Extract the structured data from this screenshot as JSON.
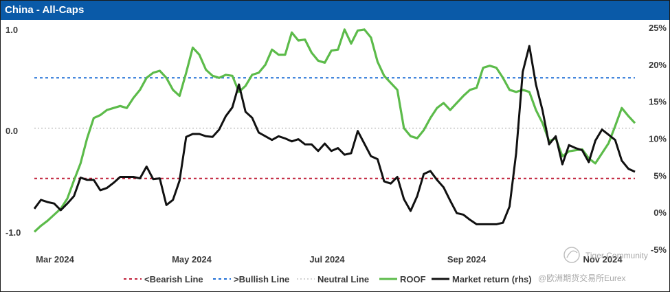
{
  "header": {
    "title": "China - All-Caps"
  },
  "chart_data": {
    "type": "line",
    "title": "China - All-Caps",
    "x_labels": [
      "Mar 2024",
      "May 2024",
      "Jul 2024",
      "Sep 2024",
      "Nov 2024"
    ],
    "y_left": {
      "range": [
        -1.0,
        1.0
      ],
      "ticks": [
        "1.0",
        "0.0",
        "-1.0"
      ],
      "tick_values": [
        1.0,
        0.0,
        -1.0
      ]
    },
    "y_right": {
      "range": [
        -5,
        25
      ],
      "ticks": [
        "25%",
        "20%",
        "15%",
        "10%",
        "5%",
        "0%",
        "-5%"
      ],
      "tick_values": [
        25,
        20,
        15,
        10,
        5,
        0,
        -5
      ]
    },
    "reference_lines": [
      {
        "name": "<Bearish Line",
        "value": -0.5,
        "color": "#c0203a",
        "style": "dashed"
      },
      {
        "name": ">Bullish Line",
        "value": 0.5,
        "color": "#1f6fd6",
        "style": "dashed"
      },
      {
        "name": "Neutral Line",
        "value": 0.0,
        "color": "#b8b8b8",
        "style": "dotted"
      }
    ],
    "series": [
      {
        "name": "ROOF",
        "axis": "left",
        "color": "#5cbb4a",
        "x": [
          0,
          3,
          6,
          9,
          12,
          15,
          18,
          21,
          24,
          27,
          30,
          33,
          36,
          39,
          42,
          45,
          48,
          51,
          54,
          57,
          60,
          63,
          66,
          69,
          72,
          75,
          78,
          81,
          84,
          87,
          90,
          93,
          96,
          99,
          102,
          105,
          108,
          111,
          114,
          117,
          120,
          123,
          126,
          129,
          132,
          135,
          138,
          141,
          144,
          147,
          150,
          153,
          156,
          159,
          162,
          165,
          168,
          171,
          174,
          177,
          180,
          183,
          186,
          189,
          192,
          195,
          198,
          201,
          204,
          207,
          210,
          213,
          216,
          219,
          222,
          225,
          228,
          231,
          234,
          237,
          240,
          243,
          246,
          249,
          252,
          255,
          258,
          261,
          264,
          267,
          270,
          273
        ],
        "values": [
          -1.03,
          -0.97,
          -0.92,
          -0.86,
          -0.8,
          -0.7,
          -0.52,
          -0.35,
          -0.1,
          0.1,
          0.13,
          0.18,
          0.2,
          0.22,
          0.2,
          0.3,
          0.38,
          0.5,
          0.55,
          0.57,
          0.5,
          0.38,
          0.32,
          0.55,
          0.8,
          0.73,
          0.58,
          0.52,
          0.5,
          0.53,
          0.52,
          0.36,
          0.42,
          0.53,
          0.55,
          0.63,
          0.78,
          0.73,
          0.73,
          0.95,
          0.87,
          0.88,
          0.75,
          0.67,
          0.65,
          0.77,
          0.78,
          0.98,
          0.84,
          0.97,
          0.98,
          0.9,
          0.66,
          0.52,
          0.45,
          0.38,
          0.0,
          -0.08,
          -0.1,
          -0.02,
          0.1,
          0.2,
          0.25,
          0.18,
          0.25,
          0.32,
          0.38,
          0.4,
          0.6,
          0.62,
          0.6,
          0.5,
          0.38,
          0.36,
          0.38,
          0.36,
          0.18,
          0.05,
          -0.13,
          -0.1,
          -0.28,
          -0.23,
          -0.22,
          -0.21,
          -0.3,
          -0.35,
          -0.25,
          -0.15,
          0.02,
          0.2,
          0.12,
          0.05
        ]
      },
      {
        "name": "Market return (rhs)",
        "axis": "right",
        "color": "#111111",
        "x": [
          0,
          3,
          6,
          9,
          12,
          15,
          18,
          21,
          24,
          27,
          30,
          33,
          36,
          39,
          42,
          45,
          48,
          51,
          54,
          57,
          60,
          63,
          66,
          69,
          72,
          75,
          78,
          81,
          84,
          87,
          90,
          93,
          96,
          99,
          102,
          105,
          108,
          111,
          114,
          117,
          120,
          123,
          126,
          129,
          132,
          135,
          138,
          141,
          144,
          147,
          150,
          153,
          156,
          159,
          162,
          165,
          168,
          171,
          174,
          177,
          180,
          183,
          186,
          189,
          192,
          195,
          198,
          201,
          204,
          207,
          210,
          213,
          216,
          219,
          222,
          225,
          228,
          231,
          234,
          237,
          240,
          243,
          246,
          249,
          252,
          255,
          258,
          261,
          264,
          267,
          270,
          273
        ],
        "values": [
          0.5,
          1.7,
          1.4,
          1.2,
          0.3,
          1.2,
          2.2,
          4.7,
          4.4,
          4.4,
          3.0,
          3.3,
          4.0,
          4.8,
          4.8,
          4.8,
          4.6,
          6.2,
          4.5,
          4.6,
          1.0,
          1.7,
          4.3,
          10.2,
          10.6,
          10.6,
          10.3,
          10.2,
          11.2,
          13.0,
          14.2,
          17.3,
          13.6,
          12.8,
          10.8,
          10.3,
          9.8,
          10.3,
          10.0,
          9.6,
          9.9,
          9.2,
          9.2,
          8.3,
          9.3,
          8.3,
          8.7,
          7.8,
          8.0,
          11.0,
          9.3,
          7.6,
          7.2,
          4.2,
          3.9,
          4.8,
          1.8,
          0.2,
          2.2,
          5.2,
          5.6,
          4.4,
          3.4,
          1.6,
          -0.1,
          -0.3,
          -1.0,
          -1.6,
          -1.6,
          -1.6,
          -1.6,
          -1.4,
          0.8,
          8.0,
          19.0,
          22.5,
          17.3,
          13.8,
          9.2,
          10.3,
          6.5,
          9.1,
          8.7,
          8.4,
          6.8,
          9.7,
          11.2,
          10.5,
          9.8,
          7.0,
          5.9,
          5.5
        ]
      }
    ],
    "legend": [
      "<Bearish Line",
      ">Bullish Line",
      "Neutral Line",
      "ROOF",
      "Market return (rhs)"
    ],
    "legend_position": "bottom"
  },
  "watermark": {
    "text1": "Tiger Community",
    "text2": "@欧洲期货交易所Eurex"
  }
}
